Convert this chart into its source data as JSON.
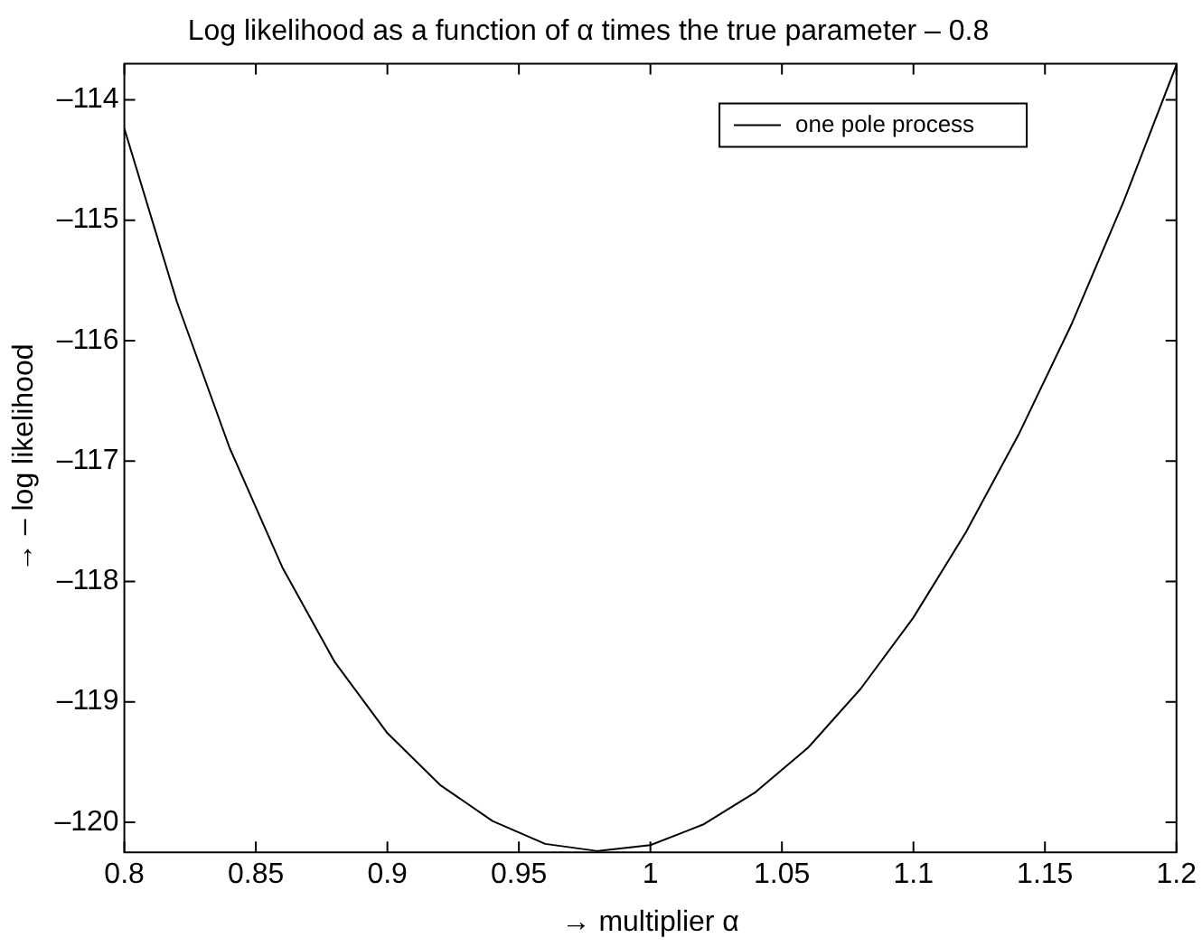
{
  "chart_data": {
    "type": "line",
    "title": "Log likelihood as a function of α times the true parameter – 0.8",
    "xlabel": "→ multiplier α",
    "ylabel": "→ – log likelihood",
    "x": [
      0.8,
      0.82,
      0.84,
      0.86,
      0.88,
      0.9,
      0.92,
      0.94,
      0.96,
      0.98,
      1.0,
      1.02,
      1.04,
      1.06,
      1.08,
      1.1,
      1.12,
      1.14,
      1.16,
      1.18,
      1.2
    ],
    "series": [
      {
        "name": "one pole process",
        "color": "#000000",
        "values": [
          -114.24,
          -115.68,
          -116.89,
          -117.88,
          -118.67,
          -119.26,
          -119.69,
          -119.99,
          -120.18,
          -120.24,
          -120.19,
          -120.02,
          -119.75,
          -119.38,
          -118.89,
          -118.3,
          -117.59,
          -116.78,
          -115.87,
          -114.84,
          -113.71
        ]
      }
    ],
    "xlim": [
      0.8,
      1.2
    ],
    "xticks": [
      0.8,
      0.85,
      0.9,
      0.95,
      1,
      1.05,
      1.1,
      1.15,
      1.2
    ],
    "ylim": [
      -120.25,
      -113.7
    ],
    "yticks": [
      {
        "value": -120,
        "label": "–120"
      },
      {
        "value": -119,
        "label": "–119"
      },
      {
        "value": -118,
        "label": "–118"
      },
      {
        "value": -117,
        "label": "–117"
      },
      {
        "value": -116,
        "label": "–116"
      },
      {
        "value": -115,
        "label": "–115"
      },
      {
        "value": -114,
        "label": "–114"
      }
    ],
    "legend": "top right",
    "marker": "none",
    "line_style": "solid",
    "grid": false
  }
}
